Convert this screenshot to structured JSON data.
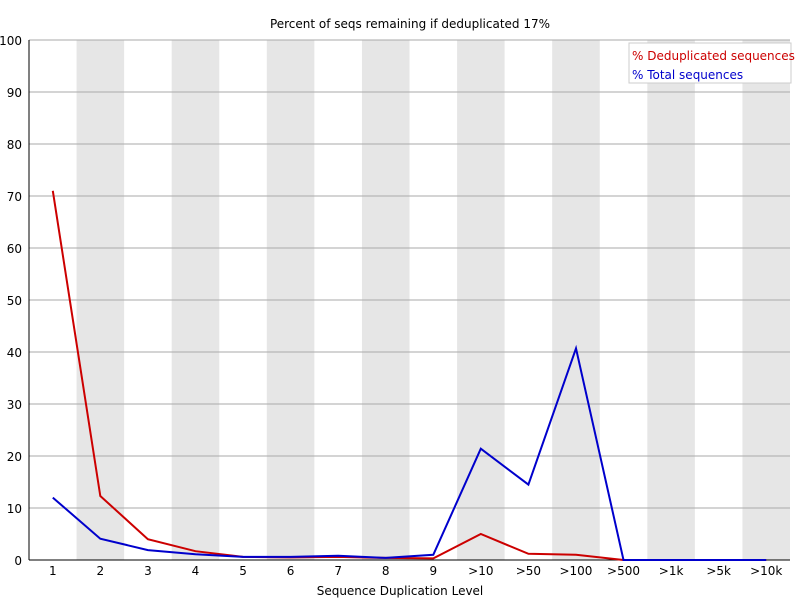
{
  "chart_data": {
    "type": "line",
    "title": "Percent of seqs remaining if deduplicated 17%",
    "xlabel": "Sequence Duplication Level",
    "ylabel": "",
    "ylim": [
      0,
      100
    ],
    "yticks": [
      0,
      10,
      20,
      30,
      40,
      50,
      60,
      70,
      80,
      90,
      100
    ],
    "categories": [
      "1",
      "2",
      "3",
      "4",
      "5",
      "6",
      "7",
      "8",
      "9",
      ">10",
      ">50",
      ">100",
      ">500",
      ">1k",
      ">5k",
      ">10k"
    ],
    "grid": true,
    "legend_position": "top-right",
    "series": [
      {
        "name": "% Deduplicated sequences",
        "color": "#cc0000",
        "values": [
          71,
          12.3,
          4,
          1.7,
          0.6,
          0.5,
          0.6,
          0.4,
          0.3,
          5,
          1.2,
          1,
          0,
          0,
          0,
          0
        ]
      },
      {
        "name": "% Total sequences",
        "color": "#0000cc",
        "values": [
          12,
          4.1,
          1.9,
          1.1,
          0.6,
          0.6,
          0.8,
          0.4,
          1,
          21.4,
          14.5,
          40.7,
          0,
          0,
          0,
          0
        ]
      }
    ],
    "colors": {
      "band": "#e6e6e6",
      "grid": "#aaaaaa",
      "axis": "#000000"
    }
  }
}
